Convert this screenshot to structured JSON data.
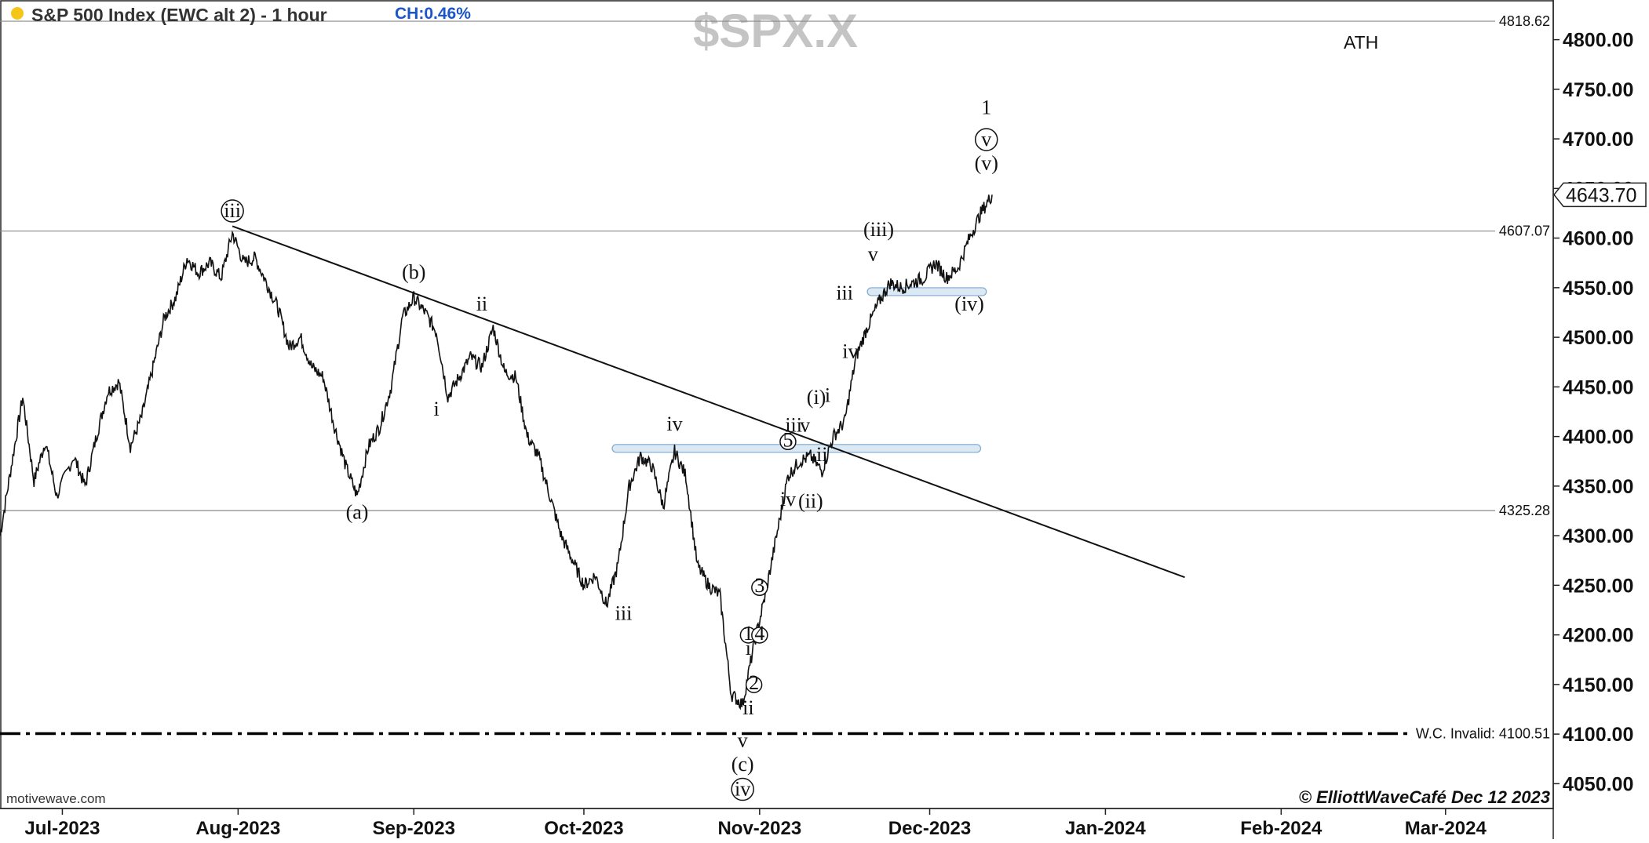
{
  "header": {
    "title": "S&P 500 Index (EWC alt 2) - 1 hour",
    "change": "CH:0.46%",
    "symbol_watermark": "$SPX.X",
    "ath_label": "ATH"
  },
  "colors": {
    "status_dot": "#f5c518",
    "change_text": "#1a56c8",
    "watermark": "#c4c4c4",
    "price_bars": "#111111",
    "zone_fill": "#dbe9f5",
    "zone_stroke": "#7fa8cc"
  },
  "footer": {
    "source": "motivewave.com",
    "copyright": "© ElliottWaveCafé Dec 12 2023"
  },
  "chart_data": {
    "type": "line",
    "subtype": "price bars (1 hour)",
    "title": "S&P 500 Index (EWC alt 2) - 1 hour",
    "symbol": "$SPX.X",
    "ylim": [
      4025,
      4840
    ],
    "xlim": [
      "2023-06-20",
      "2024-03-20"
    ],
    "y_scale": "linear",
    "grid": false,
    "y_ticks": [
      4050,
      4100,
      4150,
      4200,
      4250,
      4300,
      4350,
      4400,
      4450,
      4500,
      4550,
      4600,
      4650,
      4700,
      4750,
      4800
    ],
    "y_tick_labels": [
      "4050.00",
      "4100.00",
      "4150.00",
      "4200.00",
      "4250.00",
      "4300.00",
      "4350.00",
      "4400.00",
      "4450.00",
      "4500.00",
      "4550.00",
      "4600.00",
      "4650.00",
      "4700.00",
      "4750.00",
      "4800.00"
    ],
    "x_ticks": [
      {
        "date": "2023-07-01",
        "label": "Jul-2023"
      },
      {
        "date": "2023-08-01",
        "label": "Aug-2023"
      },
      {
        "date": "2023-09-01",
        "label": "Sep-2023"
      },
      {
        "date": "2023-10-01",
        "label": "Oct-2023"
      },
      {
        "date": "2023-11-01",
        "label": "Nov-2023"
      },
      {
        "date": "2023-12-01",
        "label": "Dec-2023"
      },
      {
        "date": "2024-01-01",
        "label": "Jan-2024"
      },
      {
        "date": "2024-02-01",
        "label": "Feb-2024"
      },
      {
        "date": "2024-03-01",
        "label": "Mar-2024"
      }
    ],
    "series": [
      {
        "values": [
          [
            "2023-06-20",
            4300
          ],
          [
            "2023-06-22",
            4370
          ],
          [
            "2023-06-24",
            4440
          ],
          [
            "2023-06-26",
            4355
          ],
          [
            "2023-06-28",
            4395
          ],
          [
            "2023-06-30",
            4340
          ],
          [
            "2023-07-03",
            4380
          ],
          [
            "2023-07-05",
            4350
          ],
          [
            "2023-07-07",
            4400
          ],
          [
            "2023-07-09",
            4445
          ],
          [
            "2023-07-11",
            4455
          ],
          [
            "2023-07-13",
            4390
          ],
          [
            "2023-07-15",
            4420
          ],
          [
            "2023-07-17",
            4470
          ],
          [
            "2023-07-19",
            4520
          ],
          [
            "2023-07-21",
            4540
          ],
          [
            "2023-07-23",
            4580
          ],
          [
            "2023-07-25",
            4565
          ],
          [
            "2023-07-27",
            4575
          ],
          [
            "2023-07-29",
            4560
          ],
          [
            "2023-07-31",
            4605
          ],
          [
            "2023-08-02",
            4575
          ],
          [
            "2023-08-04",
            4580
          ],
          [
            "2023-08-06",
            4555
          ],
          [
            "2023-08-08",
            4530
          ],
          [
            "2023-08-10",
            4490
          ],
          [
            "2023-08-12",
            4500
          ],
          [
            "2023-08-14",
            4470
          ],
          [
            "2023-08-16",
            4460
          ],
          [
            "2023-08-18",
            4410
          ],
          [
            "2023-08-20",
            4370
          ],
          [
            "2023-08-22",
            4340
          ],
          [
            "2023-08-24",
            4390
          ],
          [
            "2023-08-26",
            4410
          ],
          [
            "2023-08-28",
            4450
          ],
          [
            "2023-08-30",
            4520
          ],
          [
            "2023-09-01",
            4540
          ],
          [
            "2023-09-03",
            4525
          ],
          [
            "2023-09-05",
            4505
          ],
          [
            "2023-09-07",
            4440
          ],
          [
            "2023-09-09",
            4460
          ],
          [
            "2023-09-11",
            4480
          ],
          [
            "2023-09-13",
            4470
          ],
          [
            "2023-09-15",
            4510
          ],
          [
            "2023-09-17",
            4465
          ],
          [
            "2023-09-19",
            4460
          ],
          [
            "2023-09-21",
            4400
          ],
          [
            "2023-09-23",
            4380
          ],
          [
            "2023-09-25",
            4340
          ],
          [
            "2023-09-27",
            4300
          ],
          [
            "2023-09-29",
            4275
          ],
          [
            "2023-10-01",
            4250
          ],
          [
            "2023-10-03",
            4260
          ],
          [
            "2023-10-05",
            4230
          ],
          [
            "2023-10-07",
            4270
          ],
          [
            "2023-10-09",
            4350
          ],
          [
            "2023-10-11",
            4380
          ],
          [
            "2023-10-13",
            4370
          ],
          [
            "2023-10-15",
            4330
          ],
          [
            "2023-10-17",
            4385
          ],
          [
            "2023-10-19",
            4360
          ],
          [
            "2023-10-21",
            4270
          ],
          [
            "2023-10-23",
            4250
          ],
          [
            "2023-10-25",
            4240
          ],
          [
            "2023-10-27",
            4140
          ],
          [
            "2023-10-29",
            4130
          ],
          [
            "2023-10-31",
            4190
          ],
          [
            "2023-11-02",
            4240
          ],
          [
            "2023-11-04",
            4300
          ],
          [
            "2023-11-06",
            4360
          ],
          [
            "2023-11-08",
            4375
          ],
          [
            "2023-11-10",
            4380
          ],
          [
            "2023-11-12",
            4365
          ],
          [
            "2023-11-14",
            4400
          ],
          [
            "2023-11-16",
            4415
          ],
          [
            "2023-11-18",
            4480
          ],
          [
            "2023-11-20",
            4510
          ],
          [
            "2023-11-22",
            4535
          ],
          [
            "2023-11-24",
            4555
          ],
          [
            "2023-11-26",
            4550
          ],
          [
            "2023-11-28",
            4555
          ],
          [
            "2023-11-30",
            4560
          ],
          [
            "2023-12-02",
            4575
          ],
          [
            "2023-12-04",
            4560
          ],
          [
            "2023-12-06",
            4570
          ],
          [
            "2023-12-08",
            4600
          ],
          [
            "2023-12-10",
            4625
          ],
          [
            "2023-12-12",
            4643.7
          ]
        ]
      }
    ],
    "horizontal_levels": [
      {
        "value": 4818.62,
        "label": "4818.62",
        "style": "thin"
      },
      {
        "value": 4607.07,
        "label": "4607.07",
        "style": "thin"
      },
      {
        "value": 4325.28,
        "label": "4325.28",
        "style": "thin"
      },
      {
        "value": 4100.51,
        "label": "W.C. Invalid: 4100.51",
        "style": "dash-dot"
      }
    ],
    "last_price": {
      "value": 4643.7,
      "label": "4643.70"
    },
    "trendline": {
      "from": [
        "2023-07-31",
        4612
      ],
      "to": [
        "2024-01-15",
        4258
      ]
    },
    "zones": [
      {
        "from": "2023-10-06",
        "to": "2023-12-10",
        "value": 4388
      },
      {
        "from": "2023-11-20",
        "to": "2023-12-11",
        "value": 4546
      }
    ],
    "wave_labels": [
      {
        "text": "iii",
        "date": "2023-07-31",
        "price": 4621,
        "circled": true
      },
      {
        "text": "(b)",
        "date": "2023-09-01",
        "price": 4559
      },
      {
        "text": "ii",
        "date": "2023-09-13",
        "price": 4527
      },
      {
        "text": "i",
        "date": "2023-09-05",
        "price": 4421
      },
      {
        "text": "(a)",
        "date": "2023-08-22",
        "price": 4317
      },
      {
        "text": "iii",
        "date": "2023-10-08",
        "price": 4215
      },
      {
        "text": "iv",
        "date": "2023-10-17",
        "price": 4406
      },
      {
        "text": "v",
        "date": "2023-10-29",
        "price": 4087
      },
      {
        "text": "(c)",
        "date": "2023-10-29",
        "price": 4063
      },
      {
        "text": "iv",
        "date": "2023-10-29",
        "price": 4038,
        "circled": true
      },
      {
        "text": "ii",
        "date": "2023-10-30",
        "price": 4120
      },
      {
        "text": "i",
        "date": "2023-10-30",
        "price": 4180
      },
      {
        "text": "1",
        "date": "2023-10-30",
        "price": 4195,
        "circled": true,
        "small": true
      },
      {
        "text": "2",
        "date": "2023-10-31",
        "price": 4145,
        "circled": true,
        "small": true
      },
      {
        "text": "4",
        "date": "2023-11-01",
        "price": 4195,
        "circled": true,
        "small": true
      },
      {
        "text": "3",
        "date": "2023-11-01",
        "price": 4243,
        "circled": true,
        "small": true
      },
      {
        "text": "iv",
        "date": "2023-11-06",
        "price": 4330
      },
      {
        "text": "(ii)",
        "date": "2023-11-10",
        "price": 4328
      },
      {
        "text": "ii",
        "date": "2023-11-12",
        "price": 4375
      },
      {
        "text": "5",
        "date": "2023-11-06",
        "price": 4390,
        "circled": true,
        "small": true
      },
      {
        "text": "iii",
        "date": "2023-11-07",
        "price": 4405
      },
      {
        "text": "v",
        "date": "2023-11-09",
        "price": 4405
      },
      {
        "text": "(i)",
        "date": "2023-11-11",
        "price": 4433
      },
      {
        "text": "i",
        "date": "2023-11-13",
        "price": 4435
      },
      {
        "text": "iv",
        "date": "2023-11-17",
        "price": 4479
      },
      {
        "text": "iii",
        "date": "2023-11-16",
        "price": 4538
      },
      {
        "text": "v",
        "date": "2023-11-21",
        "price": 4577
      },
      {
        "text": "(iii)",
        "date": "2023-11-22",
        "price": 4602
      },
      {
        "text": "(iv)",
        "date": "2023-12-08",
        "price": 4527
      },
      {
        "text": "(v)",
        "date": "2023-12-11",
        "price": 4669
      },
      {
        "text": "v",
        "date": "2023-12-11",
        "price": 4693,
        "circled": true
      },
      {
        "text": "1",
        "date": "2023-12-11",
        "price": 4725,
        "big": true
      }
    ]
  }
}
